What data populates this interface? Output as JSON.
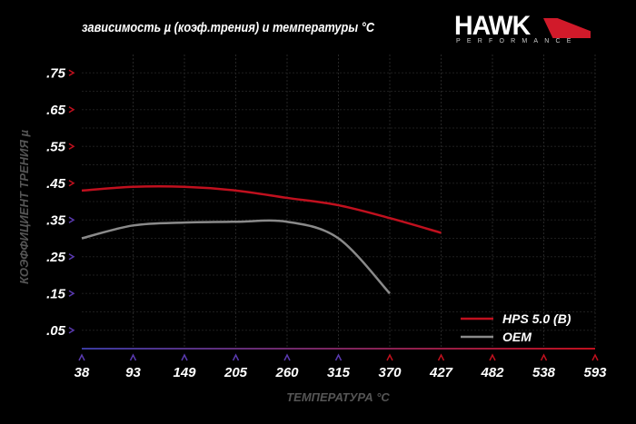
{
  "logo": {
    "word": "HAWK",
    "sub": "PERFORMANCE"
  },
  "chart_data": {
    "type": "line",
    "title": "зависимость µ (коэф.трения) и температуры °C",
    "xlabel": "ТЕМПЕРАТУРА °C",
    "ylabel": "КОЭФФИЦИЕНТ ТРЕНИЯ µ",
    "x": [
      38,
      93,
      149,
      205,
      260,
      315,
      370,
      427,
      482,
      538,
      593
    ],
    "x_tick_labels": [
      "38",
      "93",
      "149",
      "205",
      "260",
      "315",
      "370",
      "427",
      "482",
      "538",
      "593"
    ],
    "y_ticks": [
      0.75,
      0.65,
      0.55,
      0.45,
      0.35,
      0.25,
      0.15,
      0.05
    ],
    "y_tick_labels": [
      ".75",
      ".65",
      ".55",
      ".45",
      ".35",
      ".25",
      ".15",
      ".05"
    ],
    "ylim": [
      0,
      0.8
    ],
    "grid": true,
    "legend": "bottom-right",
    "series": [
      {
        "name": "HPS 5.0 (B)",
        "color": "#c0101e",
        "values": [
          0.43,
          0.44,
          0.44,
          0.43,
          0.41,
          0.39,
          0.355,
          0.315,
          null,
          null,
          null
        ]
      },
      {
        "name": "OEM",
        "color": "#8a8a8a",
        "values": [
          0.3,
          0.335,
          0.343,
          0.345,
          0.345,
          0.3,
          0.15,
          null,
          null,
          null,
          null
        ]
      }
    ]
  }
}
